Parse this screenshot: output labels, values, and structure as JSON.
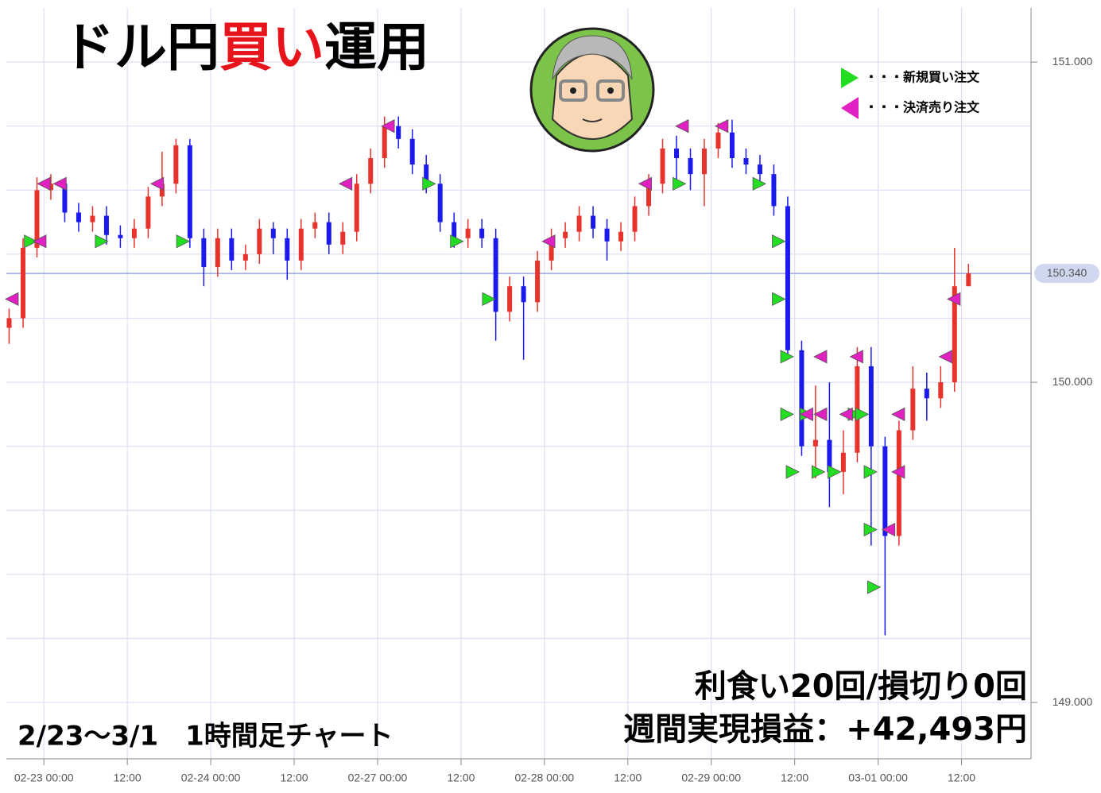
{
  "chart_data": {
    "type": "candlestick",
    "title_parts": [
      {
        "text": "ドル円",
        "color": "#000000"
      },
      {
        "text": "買い",
        "color": "#e8141c"
      },
      {
        "text": "運用",
        "color": "#000000"
      }
    ],
    "subtitle": "2/23～3/1　1時間足チャート",
    "annotations": [
      "利食い20回/損切り0回",
      "週間実現損益：+42,493円"
    ],
    "up_color": "#e8322c",
    "down_color": "#1a1aee",
    "x": [
      -5,
      -3,
      -1,
      1,
      3,
      5,
      7,
      9,
      11,
      13,
      15,
      17,
      19,
      21,
      23,
      25,
      27,
      29,
      31,
      33,
      35,
      37,
      39,
      41,
      43,
      45,
      47,
      49,
      51,
      53,
      55,
      57,
      59,
      61,
      63,
      65,
      67,
      69,
      71,
      73,
      75,
      77,
      79,
      81,
      83,
      85,
      87,
      89,
      91,
      93,
      95,
      97,
      99,
      101,
      103,
      105,
      107,
      109,
      111,
      113,
      115,
      117,
      119,
      121,
      123,
      125,
      127,
      129,
      131,
      133
    ],
    "open": [
      150.17,
      150.2,
      150.42,
      150.6,
      150.62,
      150.53,
      150.5,
      150.52,
      150.46,
      150.45,
      150.48,
      150.58,
      150.62,
      150.74,
      150.45,
      150.36,
      150.45,
      150.38,
      150.4,
      150.48,
      150.45,
      150.38,
      150.48,
      150.5,
      150.43,
      150.47,
      150.62,
      150.7,
      150.8,
      150.76,
      150.68,
      150.62,
      150.5,
      150.45,
      150.48,
      150.45,
      150.22,
      150.3,
      150.25,
      150.38,
      150.45,
      150.47,
      150.52,
      150.48,
      150.44,
      150.47,
      150.55,
      150.62,
      150.73,
      150.7,
      150.65,
      150.73,
      150.78,
      150.7,
      150.68,
      150.65,
      150.55,
      150.1,
      149.8,
      149.82,
      149.72,
      149.78,
      150.05,
      149.8,
      149.52,
      149.85,
      149.98,
      149.95,
      150.0,
      150.3
    ],
    "close": [
      150.2,
      150.42,
      150.6,
      150.62,
      150.53,
      150.5,
      150.52,
      150.46,
      150.45,
      150.48,
      150.58,
      150.62,
      150.74,
      150.45,
      150.36,
      150.45,
      150.38,
      150.4,
      150.48,
      150.45,
      150.38,
      150.48,
      150.5,
      150.43,
      150.47,
      150.62,
      150.7,
      150.8,
      150.76,
      150.68,
      150.62,
      150.5,
      150.45,
      150.48,
      150.45,
      150.22,
      150.3,
      150.25,
      150.38,
      150.45,
      150.47,
      150.52,
      150.48,
      150.44,
      150.47,
      150.55,
      150.62,
      150.73,
      150.7,
      150.65,
      150.73,
      150.78,
      150.7,
      150.68,
      150.65,
      150.55,
      150.1,
      149.8,
      149.82,
      149.72,
      149.78,
      150.05,
      149.8,
      149.52,
      149.85,
      149.98,
      149.95,
      150.0,
      150.3,
      150.34
    ],
    "high": [
      150.23,
      150.45,
      150.64,
      150.65,
      150.62,
      150.56,
      150.55,
      150.55,
      150.49,
      150.51,
      150.61,
      150.72,
      150.76,
      150.76,
      150.48,
      150.48,
      150.48,
      150.43,
      150.51,
      150.5,
      150.48,
      150.51,
      150.53,
      150.53,
      150.5,
      150.65,
      150.73,
      150.83,
      150.83,
      150.79,
      150.71,
      150.65,
      150.53,
      150.51,
      150.51,
      150.48,
      150.33,
      150.33,
      150.41,
      150.48,
      150.5,
      150.55,
      150.55,
      150.51,
      150.5,
      150.58,
      150.65,
      150.76,
      150.77,
      150.73,
      150.76,
      150.81,
      150.82,
      150.73,
      150.71,
      150.68,
      150.58,
      150.13,
      149.99,
      150.0,
      149.85,
      150.11,
      150.11,
      149.83,
      149.88,
      150.05,
      150.03,
      150.05,
      150.42,
      150.37
    ],
    "low": [
      150.12,
      150.17,
      150.39,
      150.57,
      150.5,
      150.47,
      150.47,
      150.43,
      150.42,
      150.42,
      150.45,
      150.55,
      150.59,
      150.42,
      150.3,
      150.33,
      150.35,
      150.35,
      150.37,
      150.4,
      150.32,
      150.35,
      150.45,
      150.4,
      150.4,
      150.44,
      150.59,
      150.67,
      150.73,
      150.65,
      150.59,
      150.47,
      150.42,
      150.42,
      150.42,
      150.13,
      150.19,
      150.07,
      150.22,
      150.35,
      150.42,
      150.44,
      150.45,
      150.38,
      150.41,
      150.44,
      150.52,
      150.59,
      150.62,
      150.6,
      150.55,
      150.7,
      150.67,
      150.65,
      150.62,
      150.52,
      150.07,
      149.77,
      149.7,
      149.61,
      149.65,
      149.75,
      149.49,
      149.21,
      149.49,
      149.82,
      149.88,
      149.92,
      149.97,
      150.3
    ],
    "buy_markers": {
      "color": "#22dd22",
      "name": "・・・新規買い注文",
      "x": [
        -1.9,
        8.3,
        20,
        55.4,
        59.4,
        64,
        91.4,
        102.9,
        105.7,
        105.7,
        106.9,
        106.9,
        107.7,
        109.7,
        111.4,
        113.7,
        116.6,
        117.7,
        118.9,
        118.9,
        119.4
      ],
      "values": [
        150.44,
        150.44,
        150.44,
        150.62,
        150.44,
        150.26,
        150.62,
        150.62,
        150.44,
        150.26,
        150.08,
        149.9,
        149.72,
        149.9,
        149.72,
        149.72,
        149.9,
        149.9,
        149.72,
        149.54,
        149.36
      ]
    },
    "sell_markers": {
      "color": "#e020c0",
      "name": "・・・決済売り注文",
      "x": [
        -4.6,
        -0.6,
        0,
        2.3,
        16.3,
        43.4,
        49.5,
        72.6,
        86.5,
        91.8,
        97.5,
        111.7,
        109.7,
        111.7,
        115.4,
        116.9,
        121.5,
        122.9,
        122.9,
        129.7,
        130.9
      ],
      "values": [
        150.26,
        150.44,
        150.62,
        150.62,
        150.62,
        150.62,
        150.8,
        150.44,
        150.62,
        150.8,
        150.8,
        150.08,
        149.9,
        149.9,
        149.9,
        150.08,
        149.54,
        149.72,
        149.9,
        150.08,
        150.26
      ]
    },
    "current_price": {
      "value": 150.34,
      "label": "150.340"
    },
    "xlim": [
      -5.4,
      142
    ],
    "ylim": [
      148.824,
      151.169
    ],
    "xticks": [
      {
        "value": 0,
        "label": "02-23 00:00"
      },
      {
        "value": 12,
        "label": "12:00"
      },
      {
        "value": 24,
        "label": "02-24 00:00"
      },
      {
        "value": 36,
        "label": "12:00"
      },
      {
        "value": 48,
        "label": "02-27 00:00"
      },
      {
        "value": 60,
        "label": "12:00"
      },
      {
        "value": 72,
        "label": "02-28 00:00"
      },
      {
        "value": 84,
        "label": "12:00"
      },
      {
        "value": 96,
        "label": "02-29 00:00"
      },
      {
        "value": 108,
        "label": "12:00"
      },
      {
        "value": 120,
        "label": "03-01 00:00"
      },
      {
        "value": 132,
        "label": "12:00"
      }
    ],
    "yticks": [
      {
        "value": 149,
        "label": "149.000"
      },
      {
        "value": 150,
        "label": "150.000"
      },
      {
        "value": 151,
        "label": "151.000"
      }
    ],
    "y_minor_grid": [
      149.2,
      149.4,
      149.6,
      149.8,
      150.2,
      150.4,
      150.6,
      150.8
    ],
    "grid": true
  }
}
